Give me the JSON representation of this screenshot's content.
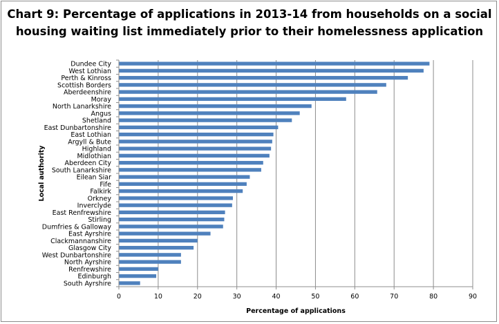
{
  "title_line1": "Chart 9:   Percentage of applications in 2013-14 from households on a social",
  "title_line2": "housing waiting list immediately prior to their homelessness application",
  "chart_data": {
    "type": "bar",
    "orientation": "horizontal",
    "title": "Chart 9:   Percentage of applications in 2013-14 from households on a social housing waiting list immediately prior to their homelessness application",
    "xlabel": "Percentage of applications",
    "ylabel": "Local authority",
    "xlim": [
      0,
      90
    ],
    "xticks": [
      0,
      10,
      20,
      30,
      40,
      50,
      60,
      70,
      80,
      90
    ],
    "grid": "vertical",
    "bar_color": "#4f81bd",
    "categories": [
      "Dundee City",
      "West Lothian",
      "Perth & Kinross",
      "Scottish Borders",
      "Aberdeenshire",
      "Moray",
      "North Lanarkshire",
      "Angus",
      "Shetland",
      "East Dunbartonshire",
      "East Lothian",
      "Argyll & Bute",
      "Highland",
      "Midlothian",
      "Aberdeen City",
      "South Lanarkshire",
      "Eilean Siar",
      "Fife",
      "Falkirk",
      "Orkney",
      "Inverclyde",
      "East Renfrewshire",
      "Stirling",
      "Dumfries & Galloway",
      "East Ayrshire",
      "Clackmannanshire",
      "Glasgow City",
      "West Dunbartonshire",
      "North Ayrshire",
      "Renfrewshire",
      "Edinburgh",
      "South Ayrshire"
    ],
    "values": [
      79,
      77.5,
      73.5,
      68,
      65.7,
      57.8,
      49,
      46,
      44,
      40.5,
      39.3,
      39,
      38.7,
      38.3,
      36.7,
      36.2,
      33.3,
      32.5,
      31.5,
      29,
      28.8,
      27,
      26.8,
      26.5,
      23.3,
      20,
      19,
      15.8,
      15.8,
      10,
      9.5,
      5.4
    ]
  }
}
